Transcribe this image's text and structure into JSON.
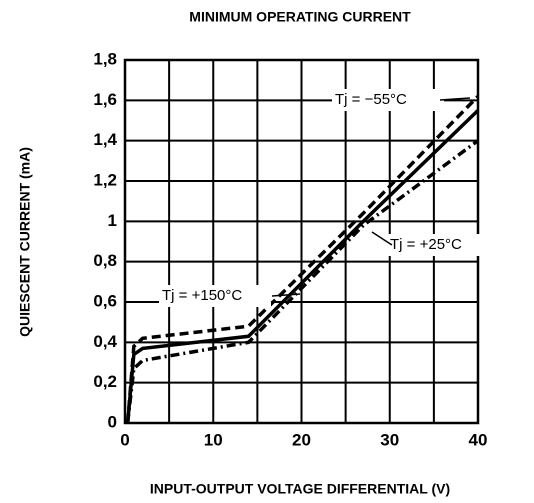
{
  "chart_data": {
    "type": "line",
    "title": "MINIMUM OPERATING CURRENT",
    "xlabel": "INPUT-OUTPUT VOLTAGE DIFFERENTIAL (V)",
    "ylabel": "QUIESCENT CURRENT (mA)",
    "x": [
      0.3,
      1,
      2,
      14,
      27,
      40
    ],
    "series": [
      {
        "name": "Tj = −55°C",
        "color": "#000000",
        "linestyle": "dashed",
        "values": [
          0,
          0.38,
          0.42,
          0.48,
          1.04,
          1.62
        ]
      },
      {
        "name": "Tj = +25°C",
        "color": "#000000",
        "linestyle": "solid",
        "values": [
          0,
          0.34,
          0.37,
          0.43,
          1.0,
          1.55
        ]
      },
      {
        "name": "Tj = +150°C",
        "color": "#000000",
        "linestyle": "dashdot",
        "values": [
          0,
          0.27,
          0.31,
          0.4,
          0.98,
          1.4
        ]
      }
    ],
    "xlim": [
      0,
      40
    ],
    "xticks": [
      0,
      10,
      20,
      30,
      40
    ],
    "xgrid": [
      0,
      5,
      10,
      15,
      20,
      25,
      30,
      35,
      40
    ],
    "ylim": [
      0,
      1.8
    ],
    "yticks": [
      0,
      {
        "value": 0.2,
        "label": "0,2"
      },
      {
        "value": 0.4,
        "label": "0,4"
      },
      {
        "value": 0.6,
        "label": "0,6"
      },
      {
        "value": 0.8,
        "label": "0,8"
      },
      1,
      {
        "value": 1.2,
        "label": "1,2"
      },
      {
        "value": 1.4,
        "label": "1,4"
      },
      {
        "value": 1.6,
        "label": "1,6"
      },
      {
        "value": 1.8,
        "label": "1,8"
      }
    ],
    "grid": true
  }
}
